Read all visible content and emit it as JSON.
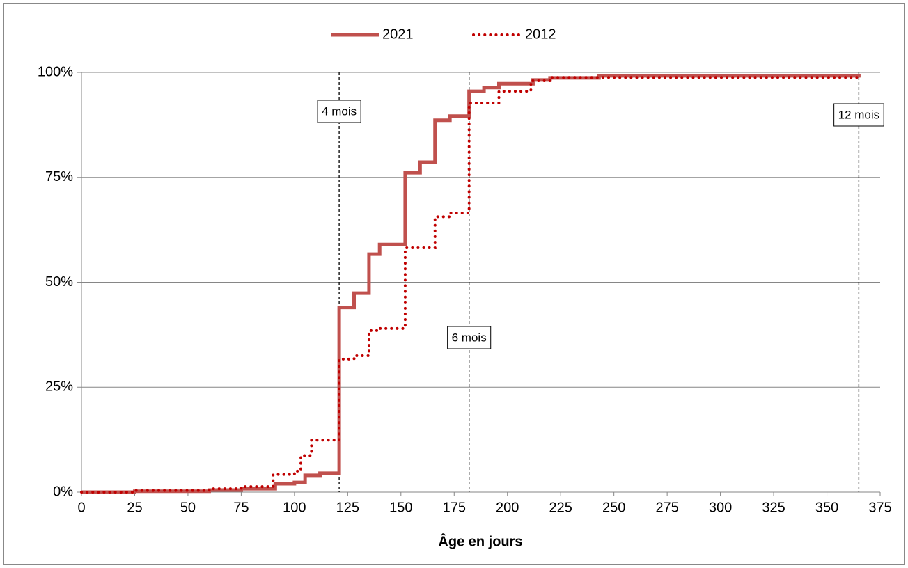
{
  "chart_data": {
    "type": "step",
    "xlabel": "Âge en jours",
    "xlim": [
      0,
      375
    ],
    "xticks": [
      0,
      25,
      50,
      75,
      100,
      125,
      150,
      175,
      200,
      225,
      250,
      275,
      300,
      325,
      350,
      375
    ],
    "ylim": [
      0,
      100
    ],
    "yticks": [
      {
        "value": 0,
        "label": "0%"
      },
      {
        "value": 25,
        "label": "25%"
      },
      {
        "value": 50,
        "label": "50%"
      },
      {
        "value": 75,
        "label": "75%"
      },
      {
        "value": 100,
        "label": "100%"
      }
    ],
    "grid": true,
    "legend": "top",
    "series": [
      {
        "name": "2021",
        "color": "#c0504d",
        "dash": "solid",
        "x": [
          0,
          25,
          60,
          75,
          91,
          100,
          105,
          112,
          121,
          128,
          135,
          140,
          152,
          159,
          166,
          173,
          182,
          189,
          196,
          212,
          220,
          243,
          365
        ],
        "values": [
          0,
          0.2,
          0.5,
          0.8,
          2.0,
          2.3,
          4.0,
          4.5,
          44,
          47.4,
          56.7,
          59,
          76.1,
          78.6,
          88.6,
          89.6,
          95.5,
          96.4,
          97.3,
          98.2,
          98.7,
          99.2,
          99.5
        ]
      },
      {
        "name": "2012",
        "color": "#c00000",
        "dash": "dotted",
        "x": [
          0,
          25,
          60,
          75,
          90,
          100,
          103,
          108,
          121,
          128,
          135,
          140,
          152,
          166,
          173,
          182,
          196,
          211,
          220,
          365
        ],
        "values": [
          0,
          0.4,
          0.8,
          1.3,
          4.2,
          5,
          8.7,
          12.4,
          31.7,
          32.5,
          38.5,
          39,
          58.2,
          65.6,
          66.5,
          92.7,
          95.5,
          98,
          98.8,
          99.5
        ]
      }
    ],
    "annotations": [
      {
        "x": 121,
        "label": "4 mois"
      },
      {
        "x": 182,
        "label": "6 mois"
      },
      {
        "x": 365,
        "label": "12 mois"
      }
    ]
  }
}
